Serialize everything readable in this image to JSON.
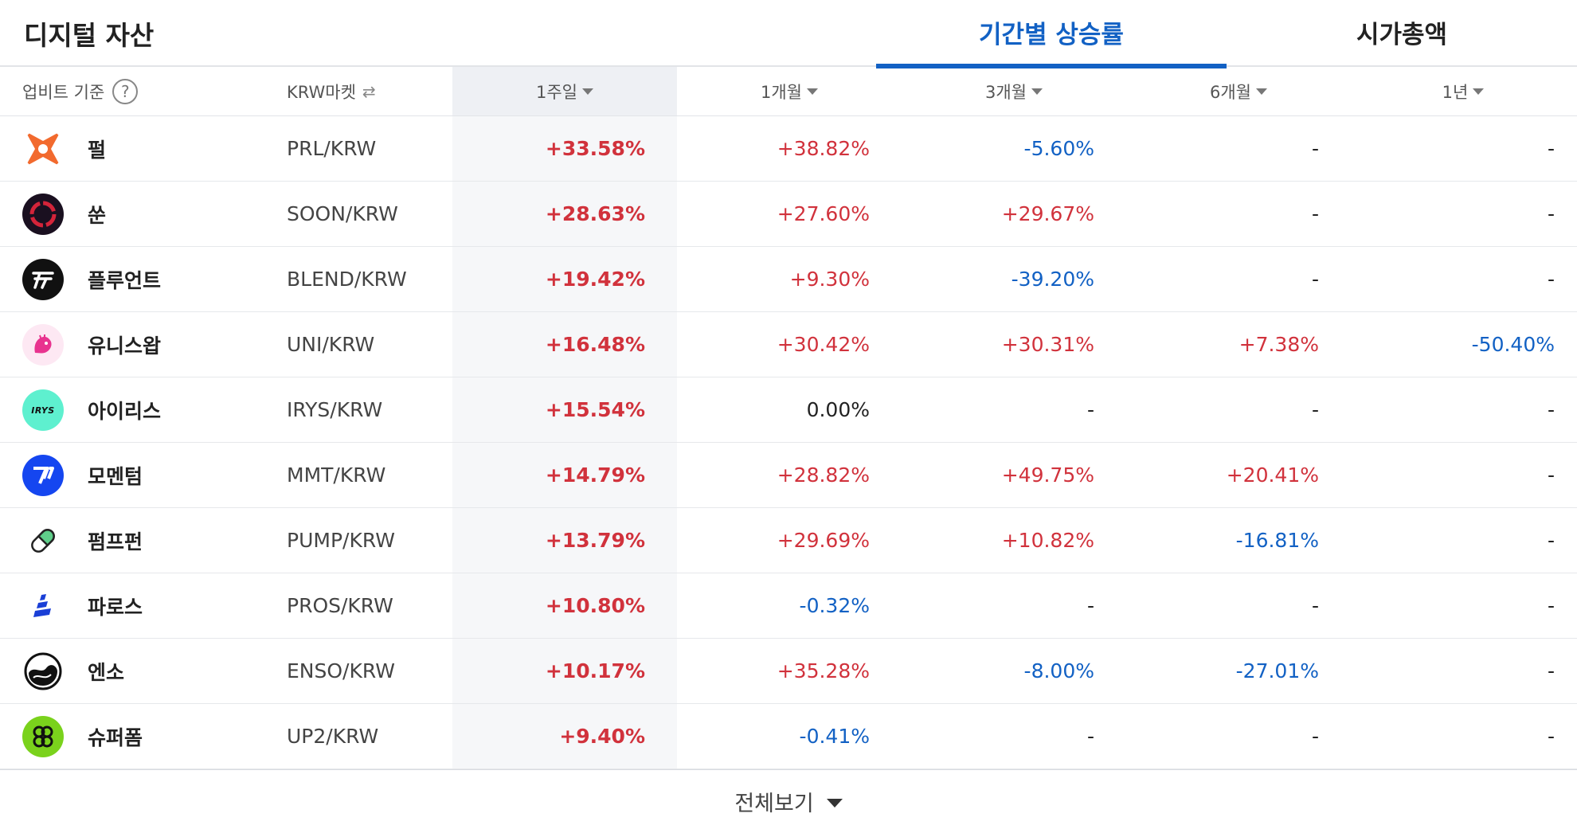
{
  "header": {
    "title": "디지털 자산",
    "tabs": [
      {
        "label": "기간별 상승률",
        "active": true
      },
      {
        "label": "시가총액",
        "active": false
      }
    ]
  },
  "columns": {
    "basis": "업비트 기준",
    "help_icon": "?",
    "market": "KRW마켓",
    "swap_icon": "⇄",
    "periods": [
      "1주일",
      "1개월",
      "3개월",
      "6개월",
      "1년"
    ],
    "sorted_column": "1주일"
  },
  "rows": [
    {
      "name": "펄",
      "pair": "PRL/KRW",
      "logo": "pearl-logo",
      "values": [
        "+33.58%",
        "+38.82%",
        "-5.60%",
        "-",
        "-"
      ]
    },
    {
      "name": "쑨",
      "pair": "SOON/KRW",
      "logo": "soon-logo",
      "values": [
        "+28.63%",
        "+27.60%",
        "+29.67%",
        "-",
        "-"
      ]
    },
    {
      "name": "플루언트",
      "pair": "BLEND/KRW",
      "logo": "fluent-logo",
      "values": [
        "+19.42%",
        "+9.30%",
        "-39.20%",
        "-",
        "-"
      ]
    },
    {
      "name": "유니스왑",
      "pair": "UNI/KRW",
      "logo": "uniswap-logo",
      "values": [
        "+16.48%",
        "+30.42%",
        "+30.31%",
        "+7.38%",
        "-50.40%"
      ]
    },
    {
      "name": "아이리스",
      "pair": "IRYS/KRW",
      "logo": "irys-logo",
      "logo_text": "IRYS",
      "values": [
        "+15.54%",
        "0.00%",
        "-",
        "-",
        "-"
      ]
    },
    {
      "name": "모멘텀",
      "pair": "MMT/KRW",
      "logo": "momentum-logo",
      "values": [
        "+14.79%",
        "+28.82%",
        "+49.75%",
        "+20.41%",
        "-"
      ]
    },
    {
      "name": "펌프펀",
      "pair": "PUMP/KRW",
      "logo": "pumpfun-logo",
      "values": [
        "+13.79%",
        "+29.69%",
        "+10.82%",
        "-16.81%",
        "-"
      ]
    },
    {
      "name": "파로스",
      "pair": "PROS/KRW",
      "logo": "pharos-logo",
      "values": [
        "+10.80%",
        "-0.32%",
        "-",
        "-",
        "-"
      ]
    },
    {
      "name": "엔소",
      "pair": "ENSO/KRW",
      "logo": "enso-logo",
      "values": [
        "+10.17%",
        "+35.28%",
        "-8.00%",
        "-27.01%",
        "-"
      ]
    },
    {
      "name": "슈퍼폼",
      "pair": "UP2/KRW",
      "logo": "superform-logo",
      "values": [
        "+9.40%",
        "-0.41%",
        "-",
        "-",
        "-"
      ]
    }
  ],
  "footer": {
    "view_all": "전체보기"
  },
  "colors": {
    "up": "#d1323c",
    "down": "#1261c4",
    "accent": "#1261c4"
  }
}
